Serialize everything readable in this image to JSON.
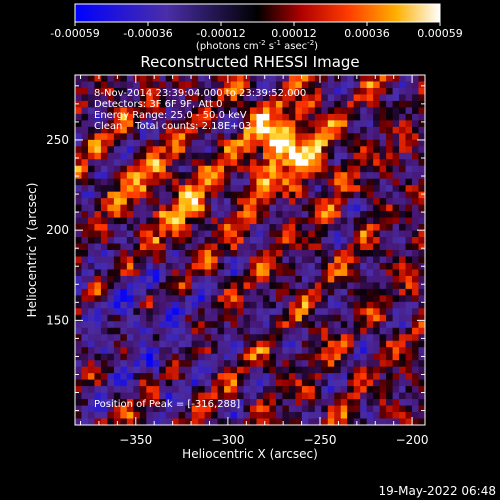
{
  "colorbar": {
    "ticks": [
      "-0.00059",
      "-0.00036",
      "-0.00012",
      "0.00012",
      "0.00036",
      "0.00059"
    ],
    "units_main": "(photons cm",
    "units_exp1": "-2",
    "units_mid": " s",
    "units_exp2": "-1",
    "units_end": " asec",
    "units_exp3": "-2",
    "units_close": ")"
  },
  "title": "Reconstructed RHESSI Image",
  "info": {
    "line1": "8-Nov-2014 23:39:04.000 to 23:39:52.000",
    "line2": "Detectors: 3F 6F 9F, Att 0",
    "line3": "Energy Range: 25.0 - 50.0 keV",
    "line4": "Clean    Total counts: 2.18E+03",
    "peak": "Position of Peak = [-316,288]"
  },
  "footer_date": "19-May-2022 06:48",
  "chart_data": {
    "type": "heatmap",
    "title": "Reconstructed RHESSI Image",
    "xlabel": "Heliocentric X (arcsec)",
    "ylabel": "Heliocentric Y (arcsec)",
    "xlim": [
      -383,
      -193
    ],
    "ylim": [
      92,
      286
    ],
    "xticks": [
      -350,
      -300,
      -250,
      -200
    ],
    "yticks": [
      150,
      200,
      250
    ],
    "xtick_labels": [
      "−350",
      "−300",
      "−250",
      "−200"
    ],
    "ytick_labels": [
      "150",
      "200",
      "250"
    ],
    "value_range": [
      -0.00059,
      0.00059
    ],
    "grid": false
  }
}
